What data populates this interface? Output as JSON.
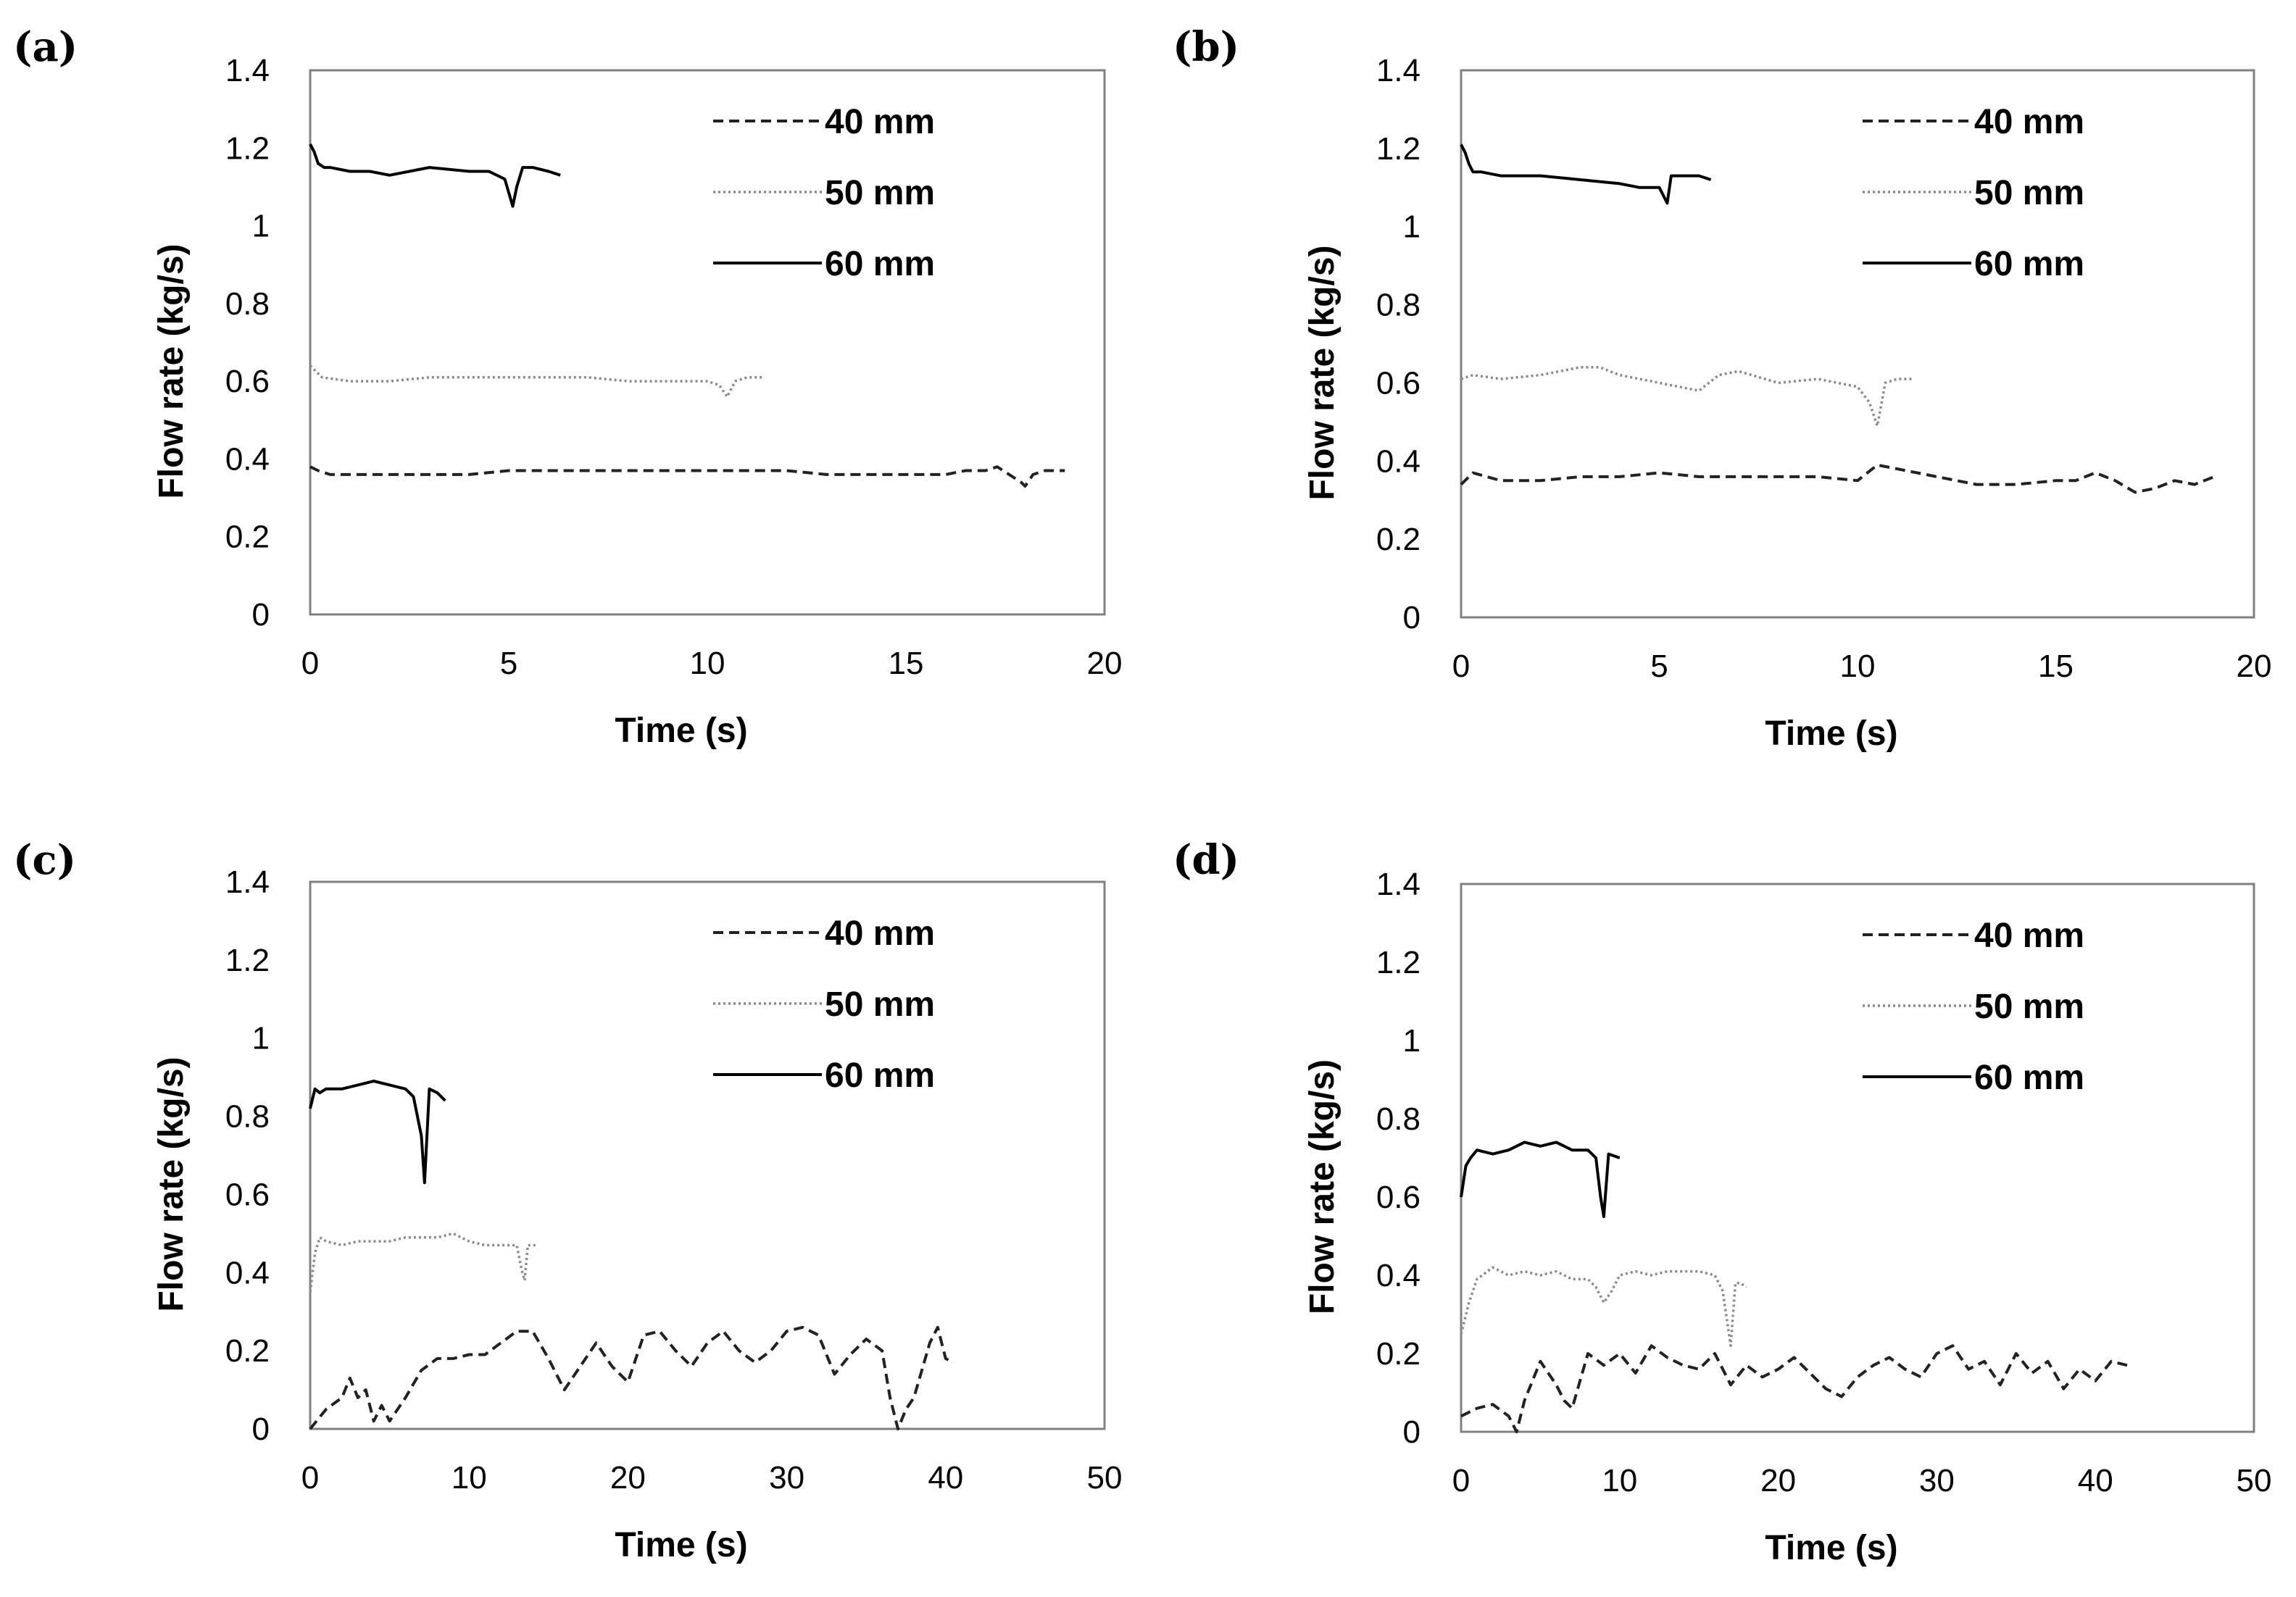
{
  "chart_data": [
    {
      "type": "line",
      "panel_label": "(a)",
      "xlabel": "Time (s)",
      "ylabel": "Flow rate (kg/s)",
      "xlim": [
        0,
        20
      ],
      "ylim": [
        0,
        1.4
      ],
      "xticks": [
        "0",
        "5",
        "10",
        "15",
        "20"
      ],
      "yticks": [
        "0",
        "0.2",
        "0.4",
        "0.6",
        "0.8",
        "1",
        "1.2",
        "1.4"
      ],
      "legend_position": "top-right",
      "series": [
        {
          "name": "40 mm",
          "color": "#222222",
          "style": "dashed",
          "x": [
            0,
            0.2,
            0.5,
            1,
            2,
            3,
            4,
            5,
            6,
            7,
            8,
            9,
            10,
            11,
            12,
            13,
            14,
            15,
            16,
            16.5,
            17,
            17.3,
            17.6,
            17.9,
            18.0,
            18.2,
            18.5,
            19
          ],
          "y": [
            0.38,
            0.37,
            0.36,
            0.36,
            0.36,
            0.36,
            0.36,
            0.37,
            0.37,
            0.37,
            0.37,
            0.37,
            0.37,
            0.37,
            0.37,
            0.36,
            0.36,
            0.36,
            0.36,
            0.37,
            0.37,
            0.38,
            0.36,
            0.34,
            0.33,
            0.36,
            0.37,
            0.37
          ]
        },
        {
          "name": "50 mm",
          "color": "#8a8a8a",
          "style": "dotted",
          "x": [
            0,
            0.3,
            1,
            2,
            3,
            4,
            5,
            6,
            7,
            8,
            9,
            10,
            10.3,
            10.5,
            10.7,
            11,
            11.4
          ],
          "y": [
            0.64,
            0.61,
            0.6,
            0.6,
            0.61,
            0.61,
            0.61,
            0.61,
            0.61,
            0.6,
            0.6,
            0.6,
            0.59,
            0.56,
            0.6,
            0.61,
            0.61
          ]
        },
        {
          "name": "60 mm",
          "color": "#000000",
          "style": "solid",
          "x": [
            0,
            0.1,
            0.2,
            0.35,
            0.5,
            1,
            1.5,
            2,
            3,
            4,
            4.5,
            4.9,
            5.1,
            5.2,
            5.35,
            5.6,
            6,
            6.3
          ],
          "y": [
            1.21,
            1.19,
            1.16,
            1.15,
            1.15,
            1.14,
            1.14,
            1.13,
            1.15,
            1.14,
            1.14,
            1.12,
            1.05,
            1.1,
            1.15,
            1.15,
            1.14,
            1.13
          ]
        }
      ]
    },
    {
      "type": "line",
      "panel_label": "(b)",
      "xlabel": "Time (s)",
      "ylabel": "Flow rate (kg/s)",
      "xlim": [
        0,
        20
      ],
      "ylim": [
        0,
        1.4
      ],
      "xticks": [
        "0",
        "5",
        "10",
        "15",
        "20"
      ],
      "yticks": [
        "0",
        "0.2",
        "0.4",
        "0.6",
        "0.8",
        "1",
        "1.2",
        "1.4"
      ],
      "legend_position": "top-right",
      "series": [
        {
          "name": "40 mm",
          "color": "#222222",
          "style": "dashed",
          "x": [
            0,
            0.3,
            1,
            2,
            3,
            4,
            5,
            6,
            7,
            8,
            9,
            10,
            10.5,
            11,
            11.5,
            12,
            13,
            14,
            15,
            15.5,
            16,
            16.5,
            17,
            17.5,
            18,
            18.5,
            19
          ],
          "y": [
            0.34,
            0.37,
            0.35,
            0.35,
            0.36,
            0.36,
            0.37,
            0.36,
            0.36,
            0.36,
            0.36,
            0.35,
            0.39,
            0.38,
            0.37,
            0.36,
            0.34,
            0.34,
            0.35,
            0.35,
            0.37,
            0.35,
            0.32,
            0.33,
            0.35,
            0.34,
            0.36
          ]
        },
        {
          "name": "50 mm",
          "color": "#8a8a8a",
          "style": "dotted",
          "x": [
            0,
            0.3,
            1,
            2,
            3,
            3.5,
            4,
            5,
            6,
            6.5,
            7,
            8,
            9,
            10,
            10.3,
            10.5,
            10.7,
            11,
            11.4
          ],
          "y": [
            0.61,
            0.62,
            0.61,
            0.62,
            0.64,
            0.64,
            0.62,
            0.6,
            0.58,
            0.62,
            0.63,
            0.6,
            0.61,
            0.59,
            0.55,
            0.49,
            0.6,
            0.61,
            0.61
          ]
        },
        {
          "name": "60 mm",
          "color": "#000000",
          "style": "solid",
          "x": [
            0,
            0.1,
            0.2,
            0.3,
            0.5,
            1,
            2,
            3,
            4,
            4.5,
            5,
            5.2,
            5.3,
            5.5,
            6,
            6.3
          ],
          "y": [
            1.21,
            1.19,
            1.16,
            1.14,
            1.14,
            1.13,
            1.13,
            1.12,
            1.11,
            1.1,
            1.1,
            1.06,
            1.13,
            1.13,
            1.13,
            1.12
          ]
        }
      ]
    },
    {
      "type": "line",
      "panel_label": "(c)",
      "xlabel": "Time (s)",
      "ylabel": "Flow rate (kg/s)",
      "xlim": [
        0,
        50
      ],
      "ylim": [
        0,
        1.4
      ],
      "xticks": [
        "0",
        "10",
        "20",
        "30",
        "40",
        "50"
      ],
      "yticks": [
        "0",
        "0.2",
        "0.4",
        "0.6",
        "0.8",
        "1",
        "1.2",
        "1.4"
      ],
      "legend_position": "top-right",
      "series": [
        {
          "name": "40 mm",
          "color": "#222222",
          "style": "dashed",
          "x": [
            0,
            1,
            2,
            2.5,
            3,
            3.5,
            4,
            4.5,
            5,
            6,
            7,
            8,
            9,
            10,
            11,
            12,
            13,
            14,
            15,
            16,
            17,
            18,
            19,
            20,
            21,
            22,
            23,
            24,
            25,
            26,
            27,
            28,
            29,
            30,
            31,
            32,
            33,
            34,
            35,
            36,
            36.5,
            37,
            37.5,
            38,
            39,
            39.5,
            40,
            40.5
          ],
          "y": [
            0.0,
            0.05,
            0.08,
            0.13,
            0.08,
            0.1,
            0.02,
            0.06,
            0.02,
            0.08,
            0.15,
            0.18,
            0.18,
            0.19,
            0.19,
            0.22,
            0.25,
            0.25,
            0.18,
            0.1,
            0.16,
            0.22,
            0.16,
            0.12,
            0.24,
            0.25,
            0.2,
            0.16,
            0.22,
            0.25,
            0.2,
            0.17,
            0.2,
            0.25,
            0.26,
            0.24,
            0.14,
            0.19,
            0.23,
            0.2,
            0.08,
            0.0,
            0.05,
            0.08,
            0.22,
            0.26,
            0.18,
            0.17
          ]
        },
        {
          "name": "50 mm",
          "color": "#8a8a8a",
          "style": "dotted",
          "x": [
            0,
            0.3,
            0.6,
            1,
            2,
            3,
            4,
            5,
            6,
            7,
            8,
            9,
            10,
            11,
            12,
            13,
            13.3,
            13.5,
            13.7,
            14.3
          ],
          "y": [
            0.35,
            0.45,
            0.49,
            0.48,
            0.47,
            0.48,
            0.48,
            0.48,
            0.49,
            0.49,
            0.49,
            0.5,
            0.48,
            0.47,
            0.47,
            0.47,
            0.41,
            0.38,
            0.47,
            0.47
          ]
        },
        {
          "name": "60 mm",
          "color": "#000000",
          "style": "solid",
          "x": [
            0,
            0.3,
            0.6,
            1,
            2,
            3,
            4,
            5,
            6,
            6.5,
            7,
            7.2,
            7.5,
            8,
            8.5
          ],
          "y": [
            0.82,
            0.87,
            0.86,
            0.87,
            0.87,
            0.88,
            0.89,
            0.88,
            0.87,
            0.85,
            0.75,
            0.63,
            0.87,
            0.86,
            0.84
          ]
        }
      ]
    },
    {
      "type": "line",
      "panel_label": "(d)",
      "xlabel": "Time (s)",
      "ylabel": "Flow rate (kg/s)",
      "xlim": [
        0,
        50
      ],
      "ylim": [
        0,
        1.4
      ],
      "xticks": [
        "0",
        "10",
        "20",
        "30",
        "40",
        "50"
      ],
      "yticks": [
        "0",
        "0.2",
        "0.4",
        "0.6",
        "0.8",
        "1",
        "1.2",
        "1.4"
      ],
      "legend_position": "top-right",
      "series": [
        {
          "name": "40 mm",
          "color": "#222222",
          "style": "dashed",
          "x": [
            0,
            1,
            2,
            3,
            3.5,
            4,
            5,
            6,
            6.5,
            7,
            8,
            9,
            10,
            11,
            12,
            13,
            14,
            15,
            16,
            17,
            18,
            19,
            20,
            21,
            22,
            23,
            24,
            25,
            26,
            27,
            28,
            29,
            30,
            31,
            32,
            33,
            34,
            35,
            36,
            37,
            38,
            39,
            40,
            41,
            42
          ],
          "y": [
            0.04,
            0.06,
            0.07,
            0.04,
            0.0,
            0.08,
            0.18,
            0.12,
            0.08,
            0.06,
            0.2,
            0.17,
            0.2,
            0.15,
            0.22,
            0.19,
            0.17,
            0.16,
            0.2,
            0.12,
            0.17,
            0.14,
            0.16,
            0.19,
            0.15,
            0.11,
            0.09,
            0.14,
            0.17,
            0.19,
            0.16,
            0.14,
            0.2,
            0.22,
            0.16,
            0.18,
            0.12,
            0.2,
            0.15,
            0.18,
            0.11,
            0.16,
            0.13,
            0.18,
            0.17
          ]
        },
        {
          "name": "50 mm",
          "color": "#8a8a8a",
          "style": "dotted",
          "x": [
            0,
            0.5,
            1,
            2,
            3,
            4,
            5,
            6,
            7,
            8,
            8.5,
            9,
            9.5,
            10,
            11,
            12,
            13,
            14,
            15,
            16,
            16.5,
            17,
            17.3,
            17.6,
            18
          ],
          "y": [
            0.25,
            0.33,
            0.39,
            0.42,
            0.4,
            0.41,
            0.4,
            0.41,
            0.39,
            0.39,
            0.37,
            0.33,
            0.36,
            0.4,
            0.41,
            0.4,
            0.41,
            0.41,
            0.41,
            0.4,
            0.36,
            0.22,
            0.38,
            0.38,
            0.37
          ]
        },
        {
          "name": "60 mm",
          "color": "#000000",
          "style": "solid",
          "x": [
            0,
            0.3,
            0.6,
            1,
            2,
            3,
            4,
            5,
            6,
            7,
            8,
            8.5,
            8.8,
            9.0,
            9.3,
            10
          ],
          "y": [
            0.6,
            0.68,
            0.7,
            0.72,
            0.71,
            0.72,
            0.74,
            0.73,
            0.74,
            0.72,
            0.72,
            0.7,
            0.6,
            0.55,
            0.71,
            0.7
          ]
        }
      ]
    }
  ]
}
